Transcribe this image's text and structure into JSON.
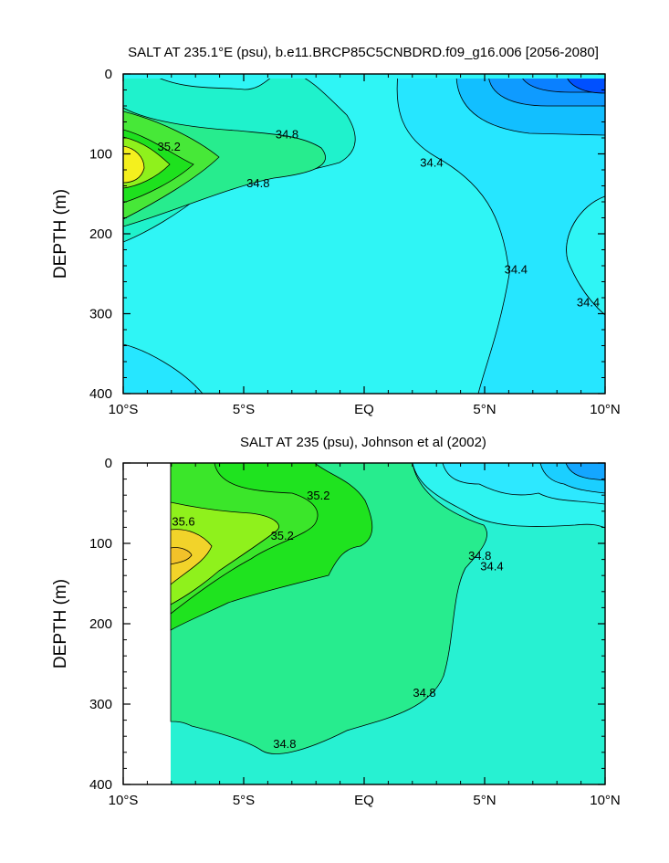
{
  "chart_data": [
    {
      "type": "contour",
      "title": "SALT AT 235.1°E (psu), b.e11.BRCP85C5CNBDRD.f09_g16.006 [2056-2080]",
      "xlabel": "",
      "ylabel": "DEPTH (m)",
      "xlim": [
        -10,
        10
      ],
      "ylim": [
        400,
        0
      ],
      "x_ticks": [
        -10,
        -5,
        0,
        5,
        10
      ],
      "x_tick_labels": [
        "10°S",
        "5°S",
        "EQ",
        "5°N",
        "10°N"
      ],
      "y_ticks": [
        0,
        100,
        200,
        300,
        400
      ],
      "y_tick_labels": [
        "0",
        "100",
        "200",
        "300",
        "400"
      ],
      "data_start_lat": -10,
      "contour_interval": 0.2,
      "contour_labels": [
        {
          "text": "35.2",
          "lat": -8.1,
          "depth": 90
        },
        {
          "text": "34.8",
          "lat": -4.4,
          "depth": 136
        },
        {
          "text": "34.8",
          "lat": -3.2,
          "depth": 75
        },
        {
          "text": "34.4",
          "lat": 2.8,
          "depth": 110
        },
        {
          "text": "34.4",
          "lat": 6.3,
          "depth": 244
        },
        {
          "text": "34.4",
          "lat": 9.3,
          "depth": 285
        }
      ],
      "fill_levels": [
        {
          "band": "<34.0",
          "color": "#0050ff"
        },
        {
          "band": "34.0-34.1",
          "color": "#0f9bff"
        },
        {
          "band": "34.1-34.2",
          "color": "#12bfff"
        },
        {
          "band": "34.2-34.4",
          "color": "#26e6ff"
        },
        {
          "band": "34.4-34.6",
          "color": "#2ff5f5"
        },
        {
          "band": "34.6-34.8",
          "color": "#1ff2cc"
        },
        {
          "band": "34.8-35.0",
          "color": "#27ec8e"
        },
        {
          "band": "35.0-35.2",
          "color": "#47e838"
        },
        {
          "band": "35.2-35.4",
          "color": "#1ee11e"
        },
        {
          "band": "35.4-35.6",
          "color": "#8ff11c"
        },
        {
          "band": ">35.6",
          "color": "#f4f01e"
        }
      ]
    },
    {
      "type": "contour",
      "title": "SALT AT 235 (psu), Johnson et al (2002)",
      "xlabel": "",
      "ylabel": "DEPTH (m)",
      "xlim": [
        -10,
        10
      ],
      "ylim": [
        400,
        0
      ],
      "x_ticks": [
        -10,
        -5,
        0,
        5,
        10
      ],
      "x_tick_labels": [
        "10°S",
        "5°S",
        "EQ",
        "5°N",
        "10°N"
      ],
      "y_ticks": [
        0,
        100,
        200,
        300,
        400
      ],
      "y_tick_labels": [
        "0",
        "100",
        "200",
        "300",
        "400"
      ],
      "data_start_lat": -8,
      "contour_interval": 0.2,
      "contour_labels": [
        {
          "text": "35.2",
          "lat": -1.9,
          "depth": 40
        },
        {
          "text": "35.6",
          "lat": -7.5,
          "depth": 72
        },
        {
          "text": "35.2",
          "lat": -3.4,
          "depth": 90
        },
        {
          "text": "34.8",
          "lat": 4.8,
          "depth": 115
        },
        {
          "text": "34.4",
          "lat": 5.3,
          "depth": 128
        },
        {
          "text": "34.8",
          "lat": 2.5,
          "depth": 285
        },
        {
          "text": "34.8",
          "lat": -3.3,
          "depth": 349
        }
      ],
      "fill_levels": [
        {
          "band": "<34.1",
          "color": "#14a6ff"
        },
        {
          "band": "34.1-34.2",
          "color": "#1bcfff"
        },
        {
          "band": "34.2-34.4",
          "color": "#2de8ff"
        },
        {
          "band": "34.4-34.6",
          "color": "#2ef4f0"
        },
        {
          "band": "34.6-34.8",
          "color": "#27f1d2"
        },
        {
          "band": "34.8-35.0",
          "color": "#27ec8e"
        },
        {
          "band": "35.0-35.2",
          "color": "#1fe31f"
        },
        {
          "band": "35.2-35.4",
          "color": "#3be62a"
        },
        {
          "band": "35.4-35.6",
          "color": "#8ff11c"
        },
        {
          "band": ">35.6",
          "color": "#f2d32a"
        }
      ]
    }
  ]
}
